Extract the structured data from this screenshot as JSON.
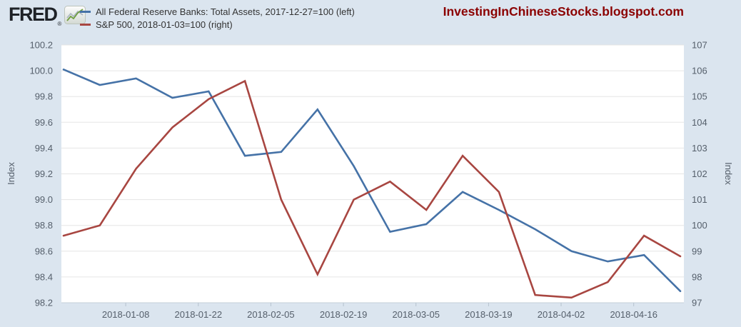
{
  "header": {
    "logo_text": "FRED",
    "registered_mark": "®",
    "watermark": "InvestingInChineseStocks.blogspot.com"
  },
  "colors": {
    "fed_assets_line": "#4572a7",
    "sp500_line": "#a84641",
    "watermark_text": "#8b0000",
    "page_background": "#dbe5ef"
  },
  "chart_data": {
    "type": "line",
    "grid": true,
    "legend_position": "top-left",
    "x": [
      "2017-12-27",
      "2018-01-03",
      "2018-01-10",
      "2018-01-17",
      "2018-01-24",
      "2018-01-31",
      "2018-02-07",
      "2018-02-14",
      "2018-02-21",
      "2018-02-28",
      "2018-03-07",
      "2018-03-14",
      "2018-03-21",
      "2018-03-28",
      "2018-04-04",
      "2018-04-11",
      "2018-04-18",
      "2018-04-25"
    ],
    "x_tick_labels": [
      "2018-01-08",
      "2018-01-22",
      "2018-02-05",
      "2018-02-19",
      "2018-03-05",
      "2018-03-19",
      "2018-04-02",
      "2018-04-16"
    ],
    "series": [
      {
        "name": "All Federal Reserve Banks: Total Assets",
        "legend_label": "All Federal Reserve Banks: Total Assets, 2017-12-27=100 (left)",
        "axis": "left",
        "color": "#4572a7",
        "values": [
          100.01,
          99.89,
          99.94,
          99.79,
          99.84,
          99.34,
          99.37,
          99.7,
          99.26,
          98.75,
          98.81,
          99.06,
          98.92,
          98.77,
          98.6,
          98.52,
          98.57,
          98.29
        ]
      },
      {
        "name": "S&P 500",
        "legend_label": "S&P 500, 2018-01-03=100 (right)",
        "axis": "right",
        "color": "#a84641",
        "values": [
          99.6,
          100.0,
          102.2,
          103.8,
          104.9,
          105.6,
          101.0,
          98.1,
          101.0,
          101.7,
          100.6,
          102.7,
          101.3,
          97.3,
          97.2,
          97.8,
          99.6,
          98.8
        ]
      }
    ],
    "left_axis": {
      "label": "Index",
      "range": [
        98.2,
        100.2
      ],
      "ticks": [
        "100.2",
        "100.0",
        "99.8",
        "99.6",
        "99.4",
        "99.2",
        "99.0",
        "98.8",
        "98.6",
        "98.4",
        "98.2"
      ]
    },
    "right_axis": {
      "label": "Index",
      "range": [
        97,
        107
      ],
      "ticks": [
        "107",
        "106",
        "105",
        "104",
        "103",
        "102",
        "101",
        "100",
        "99",
        "98",
        "97"
      ]
    }
  }
}
